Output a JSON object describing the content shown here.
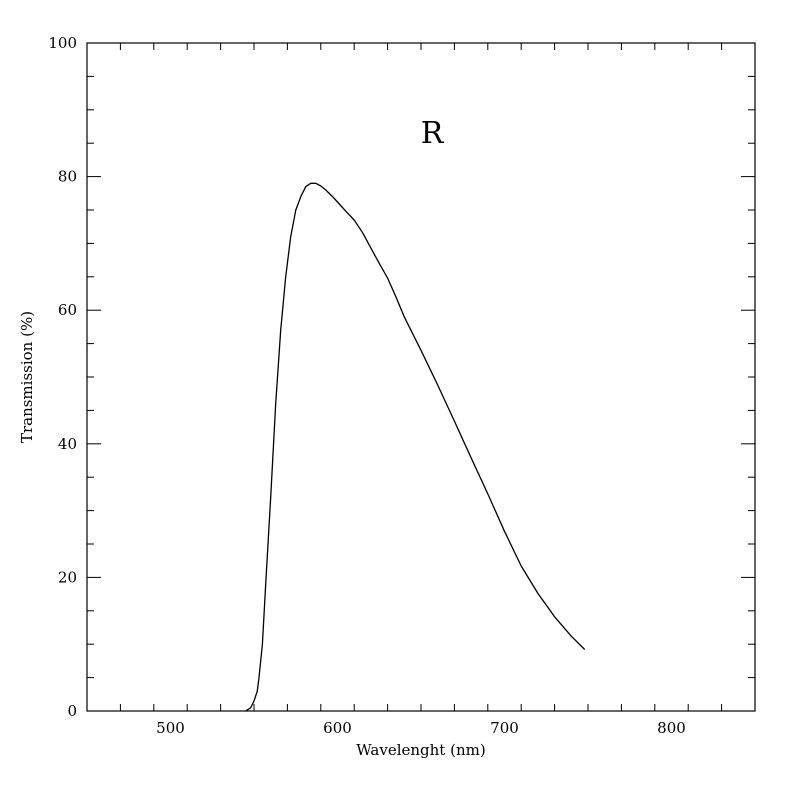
{
  "chart_data": {
    "type": "line",
    "title": "",
    "xlabel": "Wavelenght (nm)",
    "ylabel": "Transmission (%)",
    "xlim": [
      450,
      850
    ],
    "ylim": [
      0,
      100
    ],
    "x_ticks": [
      500,
      600,
      700,
      800
    ],
    "y_ticks": [
      0,
      20,
      40,
      60,
      80,
      100
    ],
    "x_tick_labels": [
      "500",
      "600",
      "700",
      "800"
    ],
    "y_tick_labels": [
      "0",
      "20",
      "40",
      "60",
      "80",
      "100"
    ],
    "x_minor_step": 20,
    "y_minor_step": 5,
    "grid": false,
    "annotation": "R",
    "line_color": "#000000",
    "series": [
      {
        "x": [
          545,
          548,
          550,
          552,
          553,
          555,
          557,
          560,
          563,
          566,
          569,
          572,
          575,
          578,
          581,
          584,
          587,
          590,
          593,
          597,
          600,
          605,
          610,
          615,
          620,
          625,
          630,
          635,
          640,
          650,
          660,
          670,
          680,
          690,
          700,
          710,
          720,
          730,
          740,
          748
        ],
        "y": [
          0,
          0.5,
          1.5,
          3,
          5,
          10,
          19,
          32,
          46,
          57,
          65,
          71,
          75,
          77,
          78.5,
          79,
          79,
          78.6,
          78,
          77,
          76.2,
          74.8,
          73.5,
          71.6,
          69.3,
          67,
          64.8,
          62,
          59,
          54,
          48.8,
          43.4,
          37.9,
          32.5,
          26.9,
          21.7,
          17.6,
          14.1,
          11.2,
          9.2
        ]
      }
    ]
  }
}
